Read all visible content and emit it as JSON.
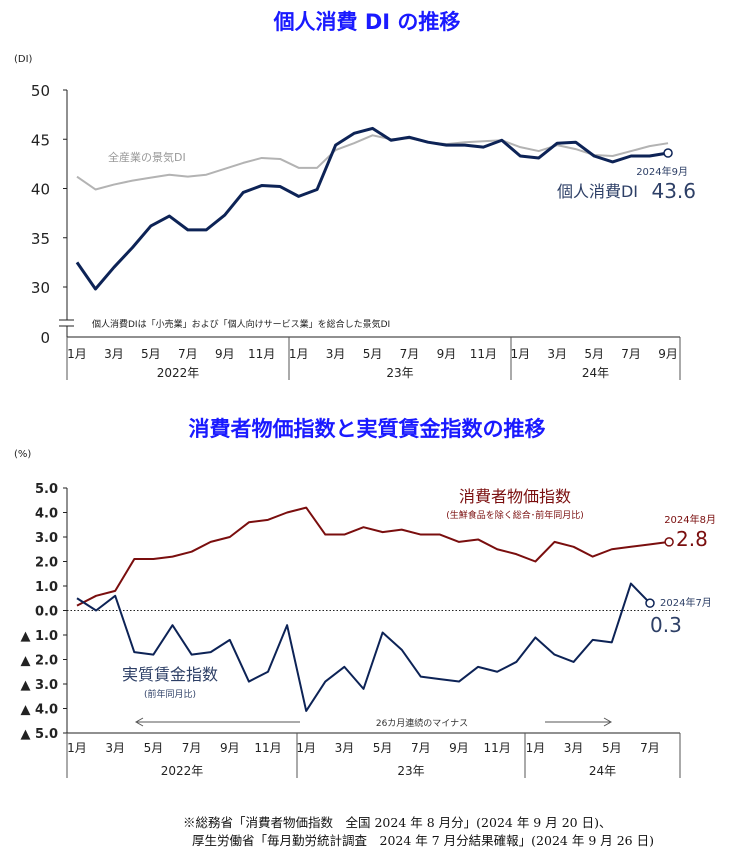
{
  "titles": {
    "chart1": "個人消費 DI の推移",
    "chart2": "消費者物価指数と実質賃金指数の推移"
  },
  "footnote": {
    "line1": "※総務省「消費者物価指数　全国 2024 年 8 月分」(2024 年 9 月 20 日)、",
    "line2": "厚生労働省「毎月勤労統計調査　2024 年 7 月分結果確報」(2024 年 9 月 26 日)"
  },
  "chart_data": [
    {
      "type": "line",
      "title": "個人消費 DI の推移",
      "ylabel": "(DI)",
      "ylim": [
        30,
        50
      ],
      "yticks": [
        "50",
        "45",
        "40",
        "35",
        "30"
      ],
      "yzero_label": "0",
      "month_labels": [
        "1月",
        "3月",
        "5月",
        "7月",
        "9月",
        "11月",
        "1月",
        "3月",
        "5月",
        "7月",
        "9月",
        "11月",
        "1月",
        "3月",
        "5月",
        "7月",
        "9月"
      ],
      "year_labels": [
        "2022年",
        "23年",
        "24年"
      ],
      "note": "個人消費DIは「小売業」および「個人向けサービス業」を総合した景気DI",
      "series": [
        {
          "name": "全産業の景気DI",
          "color": "#b3b3b3",
          "values": [
            41.2,
            39.9,
            40.4,
            40.8,
            41.1,
            41.4,
            41.2,
            41.4,
            42.0,
            42.6,
            43.1,
            43.0,
            42.1,
            42.1,
            43.9,
            44.6,
            45.4,
            45.0,
            45.1,
            44.7,
            44.5,
            44.7,
            44.8,
            44.9,
            44.2,
            43.8,
            44.4,
            44.0,
            43.4,
            43.3,
            43.8,
            44.3,
            44.6
          ]
        },
        {
          "name": "個人消費DI",
          "color": "#0d2356",
          "values": [
            32.5,
            29.8,
            32.0,
            34.0,
            36.2,
            37.2,
            35.8,
            35.8,
            37.3,
            39.6,
            40.3,
            40.2,
            39.2,
            39.9,
            44.4,
            45.6,
            46.1,
            44.9,
            45.2,
            44.7,
            44.4,
            44.4,
            44.2,
            44.9,
            43.3,
            43.1,
            44.6,
            44.7,
            43.3,
            42.7,
            43.3,
            43.3,
            43.6
          ]
        }
      ],
      "latest": {
        "date": "2024年9月",
        "label": "個人消費DI",
        "value": "43.6"
      }
    },
    {
      "type": "line",
      "title": "消費者物価指数と実質賃金指数の推移",
      "ylabel": "(%)",
      "ylim": [
        -5,
        5
      ],
      "yticks": [
        "5.0",
        "4.0",
        "3.0",
        "2.0",
        "1.0",
        "0.0",
        "▲ 1.0",
        "▲ 2.0",
        "▲ 3.0",
        "▲ 4.0",
        "▲ 5.0"
      ],
      "month_labels": [
        "1月",
        "3月",
        "5月",
        "7月",
        "9月",
        "11月",
        "1月",
        "3月",
        "5月",
        "7月",
        "9月",
        "11月",
        "1月",
        "3月",
        "5月",
        "7月"
      ],
      "year_labels": [
        "2022年",
        "23年",
        "24年"
      ],
      "annotation": "26カ月連続のマイナス",
      "series": [
        {
          "name": "消費者物価指数",
          "sub": "(生鮮食品を除く総合･前年同月比)",
          "color": "#7a0e0e",
          "values": [
            0.2,
            0.6,
            0.8,
            2.1,
            2.1,
            2.2,
            2.4,
            2.8,
            3.0,
            3.6,
            3.7,
            4.0,
            4.2,
            3.1,
            3.1,
            3.4,
            3.2,
            3.3,
            3.1,
            3.1,
            2.8,
            2.9,
            2.5,
            2.3,
            2.0,
            2.8,
            2.6,
            2.2,
            2.5,
            2.6,
            2.7,
            2.8
          ],
          "latest": {
            "date": "2024年8月",
            "value": "2.8"
          }
        },
        {
          "name": "実質賃金指数",
          "sub": "(前年同月比)",
          "color": "#0d2356",
          "values": [
            0.5,
            0.0,
            0.6,
            -1.7,
            -1.8,
            -0.6,
            -1.8,
            -1.7,
            -1.2,
            -2.9,
            -2.5,
            -0.6,
            -4.1,
            -2.9,
            -2.3,
            -3.2,
            -0.9,
            -1.6,
            -2.7,
            -2.8,
            -2.9,
            -2.3,
            -2.5,
            -2.1,
            -1.1,
            -1.8,
            -2.1,
            -1.2,
            -1.3,
            1.1,
            0.3
          ],
          "latest": {
            "date": "2024年7月",
            "value": "0.3"
          }
        }
      ]
    }
  ]
}
